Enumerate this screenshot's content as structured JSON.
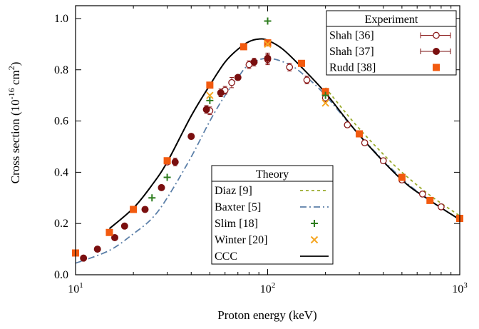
{
  "chart_data": {
    "type": "line",
    "xlabel": "Proton energy (keV)",
    "ylabel_parts": {
      "main": "Cross section (10",
      "exp1": "-16",
      "mid": " cm",
      "exp2": "2",
      "end": ")"
    },
    "xscale": "log",
    "xlim": [
      10,
      1000
    ],
    "ylim": [
      0.0,
      1.05
    ],
    "x_ticks": [
      {
        "value": 10,
        "base": "10",
        "exp": "1"
      },
      {
        "value": 100,
        "base": "10",
        "exp": "2"
      },
      {
        "value": 1000,
        "base": "10",
        "exp": "3"
      }
    ],
    "y_ticks": [
      "0.0",
      "0.2",
      "0.4",
      "0.6",
      "0.8",
      "1.0"
    ],
    "y_tick_values": [
      0.0,
      0.2,
      0.4,
      0.6,
      0.8,
      1.0
    ],
    "legend_experiment": {
      "title": "Experiment",
      "placement": "top-right",
      "entries": [
        "Shah [36]",
        "Shah [37]",
        "Rudd [38]"
      ]
    },
    "legend_theory": {
      "title": "Theory",
      "placement": "bottom-center",
      "entries": [
        "Diaz [9]",
        "Baxter [5]",
        "Slim [18]",
        "Winter [20]",
        "CCC"
      ]
    },
    "colors": {
      "shah36": "#8b1a1a",
      "shah37": "#7a0f0f",
      "rudd": "#f25a0f",
      "diaz": "#9aab2c",
      "baxter": "#5b7fa8",
      "slim": "#2e7d1f",
      "winter": "#f5a623",
      "ccc": "#000000"
    },
    "series": [
      {
        "name": "Shah [36]",
        "kind": "scatter",
        "marker": "open-circle",
        "x": [
          30,
          40,
          50,
          60,
          65,
          80,
          100,
          130,
          160,
          200,
          260,
          320,
          400,
          500,
          640,
          800
        ],
        "y": [
          0.44,
          0.54,
          0.64,
          0.72,
          0.75,
          0.82,
          0.84,
          0.81,
          0.76,
          0.69,
          0.585,
          0.515,
          0.445,
          0.37,
          0.315,
          0.265
        ],
        "err": [
          0.01,
          0.01,
          0.015,
          0.015,
          0.02,
          0.015,
          0.02,
          0.015,
          0.015,
          0.015,
          0.01,
          0.01,
          0.01,
          0.01,
          0.01,
          0.01
        ]
      },
      {
        "name": "Shah [37]",
        "kind": "scatter",
        "marker": "filled-circle",
        "x": [
          11,
          13,
          16,
          18,
          23,
          28,
          33,
          40,
          48,
          57,
          70,
          85,
          100
        ],
        "y": [
          0.065,
          0.1,
          0.145,
          0.19,
          0.255,
          0.34,
          0.44,
          0.54,
          0.645,
          0.71,
          0.77,
          0.83,
          0.845
        ],
        "err": [
          0.005,
          0.005,
          0.005,
          0.008,
          0.01,
          0.01,
          0.015,
          0.01,
          0.015,
          0.015,
          0.01,
          0.015,
          0.02
        ]
      },
      {
        "name": "Rudd [38]",
        "kind": "scatter",
        "marker": "filled-square",
        "x": [
          10,
          15,
          20,
          30,
          50,
          75,
          100,
          150,
          200,
          300,
          500,
          700,
          1000
        ],
        "y": [
          0.085,
          0.165,
          0.255,
          0.445,
          0.74,
          0.89,
          0.905,
          0.825,
          0.715,
          0.55,
          0.38,
          0.29,
          0.22
        ]
      },
      {
        "name": "Diaz [9]",
        "kind": "line",
        "dash": "dashed",
        "x": [
          200,
          250,
          300,
          400,
          500,
          700,
          1000
        ],
        "y": [
          0.73,
          0.64,
          0.57,
          0.47,
          0.4,
          0.31,
          0.23
        ]
      },
      {
        "name": "Baxter [5]",
        "kind": "line",
        "dash": "dash-dot",
        "x": [
          10,
          15,
          20,
          25,
          30,
          40,
          50,
          60,
          70,
          80,
          100,
          130,
          160,
          200,
          300,
          500,
          700,
          1000
        ],
        "y": [
          0.045,
          0.095,
          0.16,
          0.22,
          0.3,
          0.46,
          0.6,
          0.7,
          0.77,
          0.82,
          0.845,
          0.82,
          0.77,
          0.7,
          0.545,
          0.375,
          0.29,
          0.215
        ]
      },
      {
        "name": "Slim [18]",
        "kind": "scatter",
        "marker": "plus",
        "x": [
          25,
          30,
          50,
          100,
          200
        ],
        "y": [
          0.3,
          0.38,
          0.68,
          0.99,
          0.7
        ]
      },
      {
        "name": "Winter [20]",
        "kind": "scatter",
        "marker": "cross",
        "x": [
          50,
          100,
          200
        ],
        "y": [
          0.7,
          0.9,
          0.67
        ]
      },
      {
        "name": "CCC",
        "kind": "line",
        "dash": "solid",
        "x": [
          15,
          20,
          25,
          30,
          40,
          50,
          60,
          70,
          80,
          90,
          100,
          120,
          150,
          200,
          300,
          500,
          700,
          1000
        ],
        "y": [
          0.18,
          0.26,
          0.35,
          0.44,
          0.62,
          0.74,
          0.83,
          0.88,
          0.91,
          0.92,
          0.915,
          0.88,
          0.81,
          0.71,
          0.545,
          0.37,
          0.29,
          0.215
        ]
      }
    ]
  }
}
